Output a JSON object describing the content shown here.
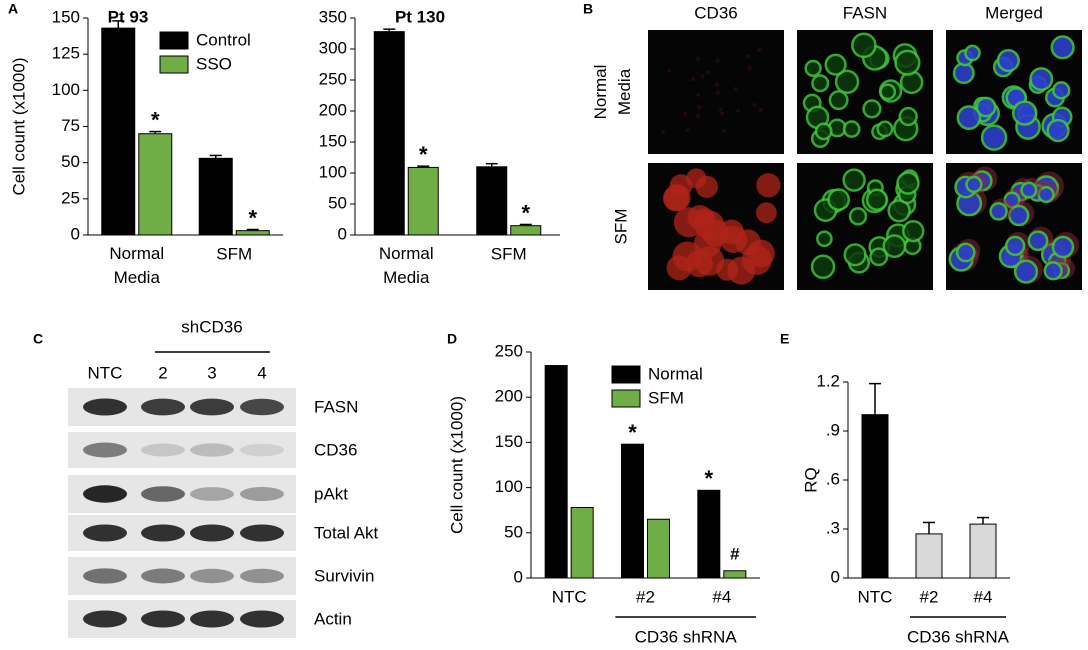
{
  "panel_labels": [
    "A",
    "B",
    "C",
    "D",
    "E"
  ],
  "microscopy": {
    "columns": [
      "CD36",
      "FASN",
      "Merged"
    ],
    "rows": [
      "Normal Media",
      "SFM"
    ]
  },
  "western_blot": {
    "group_label": "shCD36",
    "lanes": [
      "NTC",
      "2",
      "3",
      "4"
    ],
    "proteins": [
      "FASN",
      "CD36",
      "pAkt",
      "Total Akt",
      "Survivin",
      "Actin"
    ]
  },
  "chart_data": [
    {
      "type": "bar",
      "title": "Pt 93",
      "ylabel": "Cell count (x1000)",
      "categories": [
        "Normal Media",
        "SFM"
      ],
      "series": [
        {
          "name": "Control",
          "color": "#000000",
          "values": [
            143,
            53
          ],
          "errors": [
            5,
            2
          ]
        },
        {
          "name": "SSO",
          "color": "#70ad47",
          "values": [
            70,
            3
          ],
          "errors": [
            1.5,
            0.8
          ],
          "annotations": [
            "*",
            "*"
          ]
        }
      ],
      "ylim": [
        0,
        150
      ],
      "yticks": [
        0,
        25,
        50,
        75,
        100,
        125,
        150
      ],
      "legend": "upper right"
    },
    {
      "type": "bar",
      "title": "Pt 130",
      "categories": [
        "Normal Media",
        "SFM"
      ],
      "series": [
        {
          "color": "#000000",
          "values": [
            328,
            110
          ],
          "errors": [
            4,
            5
          ]
        },
        {
          "color": "#70ad47",
          "values": [
            109,
            15
          ],
          "errors": [
            2,
            2
          ],
          "annotations": [
            "*",
            "*"
          ]
        }
      ],
      "ylim": [
        0,
        350
      ],
      "yticks": [
        0,
        50,
        100,
        150,
        200,
        250,
        300,
        350
      ]
    },
    {
      "type": "bar",
      "ylabel": "Cell count (x1000)",
      "categories": [
        "NTC",
        "#2",
        "#4"
      ],
      "group_label": "CD36 shRNA",
      "series": [
        {
          "name": "Normal",
          "color": "#000000",
          "values": [
            235,
            148,
            97
          ],
          "annotations": [
            null,
            "*",
            "*"
          ]
        },
        {
          "name": "SFM",
          "color": "#70ad47",
          "values": [
            78,
            65,
            8
          ],
          "annotations": [
            null,
            null,
            "#"
          ]
        }
      ],
      "ylim": [
        0,
        250
      ],
      "yticks": [
        0,
        50,
        100,
        150,
        200,
        250
      ],
      "legend": "upper right"
    },
    {
      "type": "bar",
      "ylabel": "RQ",
      "categories": [
        "NTC",
        "#2",
        "#4"
      ],
      "group_label": "CD36 shRNA",
      "series": [
        {
          "colors": [
            "#000000",
            "#d9d9d9",
            "#d9d9d9"
          ],
          "values": [
            1.0,
            0.27,
            0.33
          ],
          "errors": [
            0.19,
            0.07,
            0.04
          ]
        }
      ],
      "ylim": [
        0,
        1.2
      ],
      "yticks": [
        0,
        {
          "value": 0.3,
          "label": ".3"
        },
        {
          "value": 0.6,
          "label": ".6"
        },
        {
          "value": 0.9,
          "label": ".9"
        },
        1.2
      ]
    }
  ]
}
